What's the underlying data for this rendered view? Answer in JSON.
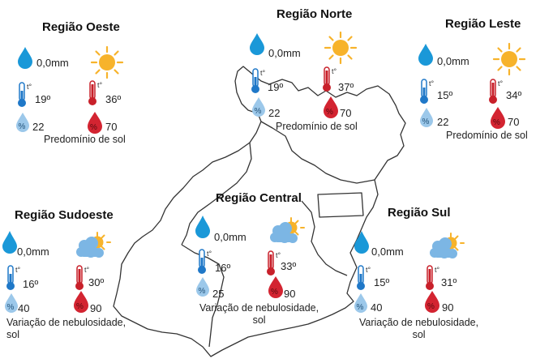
{
  "colors": {
    "map_outline": "#333333",
    "rain_drop": "#1a98d8",
    "thermo_min": "#1f78c8",
    "thermo_max": "#c8202a",
    "humidity_min": "#9cc8ea",
    "humidity_max": "#d32431",
    "sun": "#f7b32b",
    "cloud": "#7cb6e4"
  },
  "regions": {
    "oeste": {
      "title": "Região Oeste",
      "rain": "0,0mm",
      "temp_min": "19º",
      "temp_max": "36º",
      "hum_min": "22",
      "hum_max": "70",
      "weather_icon": "sun-icon",
      "description": [
        "Predomínio de sol"
      ]
    },
    "norte": {
      "title": "Região Norte",
      "rain": "0,0mm",
      "temp_min": "19º",
      "temp_max": "37º",
      "hum_min": "22",
      "hum_max": "70",
      "weather_icon": "sun-icon",
      "description": [
        "Predomínio de sol"
      ]
    },
    "leste": {
      "title": "Região Leste",
      "rain": "0,0mm",
      "temp_min": "15º",
      "temp_max": "34º",
      "hum_min": "22",
      "hum_max": "70",
      "weather_icon": "sun-icon",
      "description": [
        "Predomínio de sol"
      ]
    },
    "sudoeste": {
      "title": "Região Sudoeste",
      "rain": "0,0mm",
      "temp_min": "16º",
      "temp_max": "30º",
      "hum_min": "40",
      "hum_max": "90",
      "weather_icon": "cloud-sun-icon",
      "description": [
        "Variação de nebulosidade,",
        "sol"
      ]
    },
    "central": {
      "title": "Região Central",
      "rain": "0,0mm",
      "temp_min": "16º",
      "temp_max": "33º",
      "hum_min": "25",
      "hum_max": "90",
      "weather_icon": "cloud-sun-icon",
      "description": [
        "Variação de nebulosidade,",
        "sol"
      ]
    },
    "sul": {
      "title": "Região Sul",
      "rain": "0,0mm",
      "temp_min": "15º",
      "temp_max": "31º",
      "hum_min": "40",
      "hum_max": "90",
      "weather_icon": "cloud-sun-icon",
      "description": [
        "Variação de nebulosidade,",
        "sol"
      ]
    }
  },
  "symbols": {
    "thermometer_mark": "t°",
    "percent_mark": "%"
  }
}
